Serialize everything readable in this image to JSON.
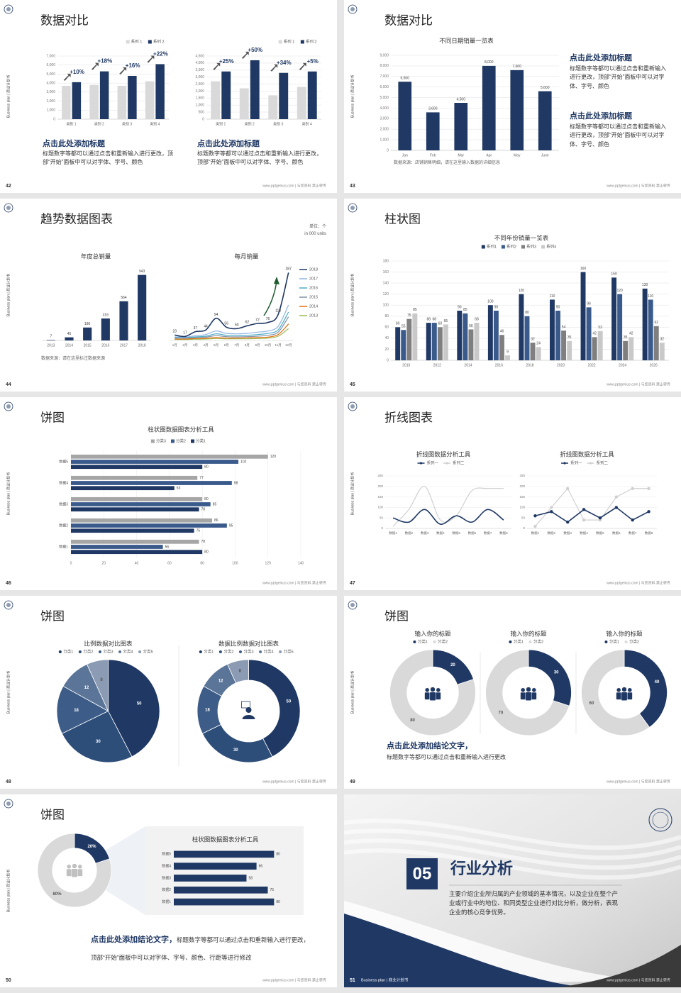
{
  "footer": {
    "site": "www.pptgenius.com | 与您资料 禁止转传",
    "side": "Business plan | 商业计划书"
  },
  "slides": [
    {
      "page": "42",
      "title": "数据对比",
      "charts": [
        {
          "type": "bar",
          "legend": "top-right",
          "grid": true,
          "categories": [
            "类别 1",
            "类别 2",
            "类别 3",
            "类别 4"
          ],
          "series": [
            {
              "name": "系列 1",
              "color": "#d9d9d9",
              "values": [
                3700,
                3800,
                3700,
                4200
              ]
            },
            {
              "name": "系列 2",
              "color": "#1f3864",
              "values": [
                4100,
                5300,
                4800,
                6100
              ]
            }
          ],
          "annotations": [
            "+10%",
            "+18%",
            "+16%",
            "+22%"
          ],
          "ylim": [
            0,
            7000
          ],
          "yticks": [
            0,
            {
              "value": 1000,
              "label": "1,000"
            },
            {
              "value": 2000,
              "label": "2,000"
            },
            {
              "value": 3000,
              "label": "3,000"
            },
            {
              "value": 4000,
              "label": "4,000"
            },
            {
              "value": 5000,
              "label": "5,000"
            },
            {
              "value": 6000,
              "label": "6,000"
            },
            {
              "value": 7000,
              "label": "7,000"
            }
          ]
        },
        {
          "type": "bar",
          "legend": "top-right",
          "grid": true,
          "categories": [
            "类别 1",
            "类别 2",
            "类别 3",
            "类别 4"
          ],
          "series": [
            {
              "name": "系列 1",
              "color": "#d9d9d9",
              "values": [
                2700,
                2200,
                1700,
                2300
              ]
            },
            {
              "name": "系列 2",
              "color": "#1f3864",
              "values": [
                3400,
                4200,
                3300,
                3400
              ]
            }
          ],
          "annotations": [
            "+25%",
            "+50%",
            "+34%",
            "+5%"
          ],
          "ylim": [
            0,
            4500
          ],
          "yticks": [
            0,
            500,
            {
              "value": 1000,
              "label": "1,000"
            },
            {
              "value": 1500,
              "label": "1,500"
            },
            {
              "value": 2000,
              "label": "2,000"
            },
            {
              "value": 2500,
              "label": "2,500"
            },
            {
              "value": 3000,
              "label": "3,000"
            },
            {
              "value": 3500,
              "label": "3,500"
            },
            {
              "value": 4000,
              "label": "4,000"
            },
            {
              "value": 4500,
              "label": "4,500"
            }
          ]
        }
      ],
      "texts": [
        "点击此处添加标题",
        "标题数字等都可以通过点击和重新输入进行更改，顶部“开始”面板中可以对字体、字号、颜色",
        "点击此处添加标题",
        "标题数字等都可以通过点击和重新输入进行更改，顶部“开始”面板中可以对字体、字号、颜色"
      ]
    },
    {
      "page": "43",
      "title": "数据对比",
      "charts": [
        {
          "type": "bar",
          "title": "不同日期销量一览表",
          "grid": true,
          "categories": [
            "Jan",
            "Feb",
            "Mar",
            "Apr",
            "May",
            "June"
          ],
          "series": [
            {
              "color": "#1f3864",
              "values": [
                6500,
                3600,
                4500,
                8000,
                7600,
                5600
              ],
              "value_labels": [
                "6,500",
                "3,600",
                "4,500",
                "8,000",
                "7,600",
                "5,600"
              ]
            }
          ],
          "ylim": [
            0,
            9000
          ],
          "yticks": [
            0,
            {
              "value": 1000,
              "label": "1,000"
            },
            {
              "value": 2000,
              "label": "2,000"
            },
            {
              "value": 3000,
              "label": "3,000"
            },
            {
              "value": 4000,
              "label": "4,000"
            },
            {
              "value": 5000,
              "label": "5,000"
            },
            {
              "value": 6000,
              "label": "6,000"
            },
            {
              "value": 7000,
              "label": "7,000"
            },
            {
              "value": 8000,
              "label": "8,000"
            },
            {
              "value": 9000,
              "label": "9,000"
            }
          ]
        }
      ],
      "texts": [
        "数据来源：店铺销售明细，请在这里输入数据的详细信息",
        "点击此处添加标题",
        "标题数字等都可以通过点击和重新输入进行更改，顶部“开始”面板中可以对字体、字号、颜色",
        "点击此处添加标题",
        "标题数字等都可以通过点击和重新输入进行更改，顶部“开始”面板中可以对字体、字号、颜色"
      ]
    },
    {
      "page": "44",
      "title": "趋势数据图表",
      "charts": [
        {
          "type": "bar",
          "title": "年度总销量",
          "categories": [
            "2013",
            "2014",
            "2015",
            "2016",
            "2017",
            "2018"
          ],
          "series": [
            {
              "color": "#1f3864",
              "values": [
                7,
                45,
                186,
                316,
                564,
                943
              ],
              "show_values": true
            }
          ],
          "ylim": [
            0,
            1000
          ]
        },
        {
          "type": "line",
          "title": "每月销量",
          "legend": "right",
          "smooth": true,
          "categories": [
            "1月",
            "2月",
            "3月",
            "4月",
            "5月",
            "6月",
            "7月",
            "8月",
            "9月",
            "10月",
            "11月",
            "12月"
          ],
          "series": [
            {
              "name": "2018",
              "color": "#1f3864",
              "values": [
                23,
                17,
                37,
                44,
                94,
                56,
                50,
                62,
                72,
                76,
                110,
                287
              ],
              "show_values": true
            },
            {
              "name": "2017",
              "color": "#8fb4e3",
              "values": [
                15,
                14,
                20,
                25,
                40,
                30,
                28,
                30,
                35,
                40,
                60,
                150
              ]
            },
            {
              "name": "2016",
              "color": "#4bacc6",
              "values": [
                12,
                12,
                15,
                18,
                28,
                22,
                20,
                22,
                25,
                30,
                45,
                120
              ]
            },
            {
              "name": "2015",
              "color": "#7f8fa6",
              "values": [
                10,
                10,
                12,
                14,
                20,
                16,
                15,
                16,
                18,
                22,
                35,
                100
              ]
            },
            {
              "name": "2014",
              "color": "#e46c0a",
              "values": [
                6,
                6,
                8,
                9,
                12,
                10,
                10,
                11,
                12,
                14,
                25,
                70
              ]
            },
            {
              "name": "2013",
              "color": "#9bbb59",
              "values": [
                4,
                4,
                5,
                6,
                8,
                7,
                7,
                7,
                8,
                10,
                18,
                50
              ]
            }
          ],
          "ylim": [
            0,
            300
          ]
        }
      ],
      "texts": [
        "单位：个",
        "in 000 units",
        "数据来源：请在这里标注数据来源"
      ]
    },
    {
      "page": "45",
      "title": "柱状图",
      "charts": [
        {
          "type": "bar",
          "title": "不同年份销量一览表",
          "legend": "top",
          "grid": true,
          "categories": [
            "2010",
            "2012",
            "2014",
            "2016",
            "2018",
            "2020",
            "2022",
            "2024",
            "2026"
          ],
          "series": [
            {
              "name": "系列1",
              "color": "#1f3864",
              "values": [
                60,
                68,
                90,
                100,
                120,
                110,
                160,
                150,
                130
              ],
              "show_values": true
            },
            {
              "name": "系列2",
              "color": "#3a5a8c",
              "values": [
                55,
                68,
                85,
                90,
                80,
                90,
                96,
                120,
                110
              ],
              "show_values": true
            },
            {
              "name": "系列3",
              "color": "#7f7f7f",
              "values": [
                75,
                60,
                56,
                46,
                32,
                54,
                42,
                35,
                62
              ],
              "show_values": true
            },
            {
              "name": "系列4",
              "color": "#c9c9c9",
              "values": [
                85,
                65,
                68,
                9,
                24,
                35,
                53,
                42,
                32
              ],
              "show_values": true
            }
          ],
          "ylim": [
            0,
            180
          ],
          "yticks": [
            0,
            20,
            40,
            60,
            80,
            100,
            120,
            140,
            160,
            180
          ]
        }
      ]
    },
    {
      "page": "46",
      "title": "饼图",
      "charts": [
        {
          "type": "hbar",
          "title": "柱状图数据图表分析工具",
          "legend": "top",
          "grid": true,
          "categories": [
            "数据5",
            "数据4",
            "数据3",
            "数据2",
            "数据1"
          ],
          "series": [
            {
              "name": "分类3",
              "color": "#a6a6a6",
              "values": [
                120,
                77,
                80,
                86,
                78
              ],
              "show_values": true
            },
            {
              "name": "分类2",
              "color": "#3a5a8c",
              "values": [
                102,
                98,
                85,
                95,
                56
              ],
              "show_values": true
            },
            {
              "name": "分类1",
              "color": "#1f3864",
              "values": [
                80,
                63,
                78,
                75,
                80
              ],
              "show_values": true
            }
          ],
          "xlim": [
            0,
            140
          ],
          "xticks": [
            0,
            20,
            40,
            60,
            80,
            100,
            120,
            140
          ]
        }
      ]
    },
    {
      "page": "47",
      "title": "折线图表",
      "charts": [
        {
          "type": "line",
          "title": "折线图数据分析工具",
          "legend": "top",
          "smooth": true,
          "grid": true,
          "categories": [
            "数据1",
            "数据2",
            "数据3",
            "数据4",
            "数据5",
            "数据6",
            "数据7",
            "数据8"
          ],
          "series": [
            {
              "name": "系列一",
              "color": "#1f3864",
              "values": [
                50,
                30,
                90,
                20,
                60,
                30,
                90,
                40
              ]
            },
            {
              "name": "系列二",
              "color": "#d0d0d0",
              "values": [
                10,
                90,
                200,
                40,
                60,
                180,
                190,
                190
              ]
            }
          ],
          "ylim": [
            0,
            250
          ],
          "yticks": [
            0,
            50,
            100,
            150,
            200,
            250
          ]
        },
        {
          "type": "line",
          "title": "折线图数据分析工具",
          "legend": "top",
          "markers": true,
          "grid": true,
          "categories": [
            "数据1",
            "数据2",
            "数据3",
            "数据4",
            "数据5",
            "数据6",
            "数据7",
            "数据8"
          ],
          "series": [
            {
              "name": "系列一",
              "color": "#1f3864",
              "values": [
                60,
                80,
                30,
                90,
                50,
                100,
                40,
                80
              ]
            },
            {
              "name": "系列二",
              "color": "#d0d0d0",
              "values": [
                10,
                100,
                190,
                40,
                40,
                150,
                190,
                190
              ]
            }
          ],
          "ylim": [
            0,
            250
          ],
          "yticks": [
            0,
            50,
            100,
            150,
            200,
            250
          ]
        }
      ]
    },
    {
      "page": "48",
      "title": "饼图",
      "charts": [
        {
          "type": "pie",
          "title": "比例数据对比图表",
          "categories": [
            "分类1",
            "分类2",
            "分类3",
            "分类4",
            "分类5"
          ],
          "values": [
            50,
            30,
            18,
            12,
            8
          ],
          "colors": [
            "#1f3864",
            "#2e4e7a",
            "#3d5d88",
            "#5a7598",
            "#8a9bb3"
          ]
        },
        {
          "type": "donut",
          "title": "数据比例数据对比图表",
          "categories": [
            "分类1",
            "分类2",
            "分类3",
            "分类4",
            "分类5"
          ],
          "values": [
            50,
            30,
            18,
            12,
            8
          ],
          "colors": [
            "#1f3864",
            "#2e4e7a",
            "#3d5d88",
            "#5a7598",
            "#8a9bb3"
          ]
        }
      ]
    },
    {
      "page": "49",
      "title": "饼图",
      "charts": [
        {
          "type": "donut",
          "title": "输入你的标题",
          "categories": [
            "分类1",
            "分类2"
          ],
          "values": [
            20,
            80
          ],
          "colors": [
            "#1f3864",
            "#d9d9d9"
          ]
        },
        {
          "type": "donut",
          "title": "输入你的标题",
          "categories": [
            "分类1",
            "分类2"
          ],
          "values": [
            30,
            70
          ],
          "colors": [
            "#1f3864",
            "#d9d9d9"
          ]
        },
        {
          "type": "donut",
          "title": "输入你的标题",
          "categories": [
            "分类1",
            "分类2"
          ],
          "values": [
            40,
            60
          ],
          "colors": [
            "#1f3864",
            "#d9d9d9"
          ]
        }
      ],
      "texts": [
        "点击此处添加结论文字，",
        "标题数字等都可以通过点击和重新输入进行更改"
      ]
    },
    {
      "page": "50",
      "title": "饼图",
      "charts": [
        {
          "type": "donut",
          "values": [
            20,
            80
          ],
          "value_labels": [
            "20%",
            "80%"
          ],
          "colors": [
            "#1f3864",
            "#d9d9d9"
          ]
        },
        {
          "type": "hbar",
          "title": "柱状图数据图表分析工具",
          "categories": [
            "数据5",
            "数据4",
            "数据3",
            "数据2",
            "数据1"
          ],
          "series": [
            {
              "color": "#1f3864",
              "values": [
                80,
                66,
                58,
                75,
                80
              ],
              "show_values": true
            }
          ],
          "xlim": [
            0,
            90
          ]
        }
      ],
      "texts": [
        "点击此处添加结论文字，",
        "标题数字等都可以通过点击和重新输入进行更改，顶部“开始”面板中可以对字体、字号、颜色、行距等进行修改"
      ]
    },
    {
      "page": "51",
      "number": "05",
      "title": "行业分析",
      "texts": [
        "主要介绍企业所归属的产业领域的基本情况，以及企业在整个产业或行业中的地位、和同类型企业进行对比分析，做分析，表现企业的核心竞争优势。"
      ]
    }
  ]
}
